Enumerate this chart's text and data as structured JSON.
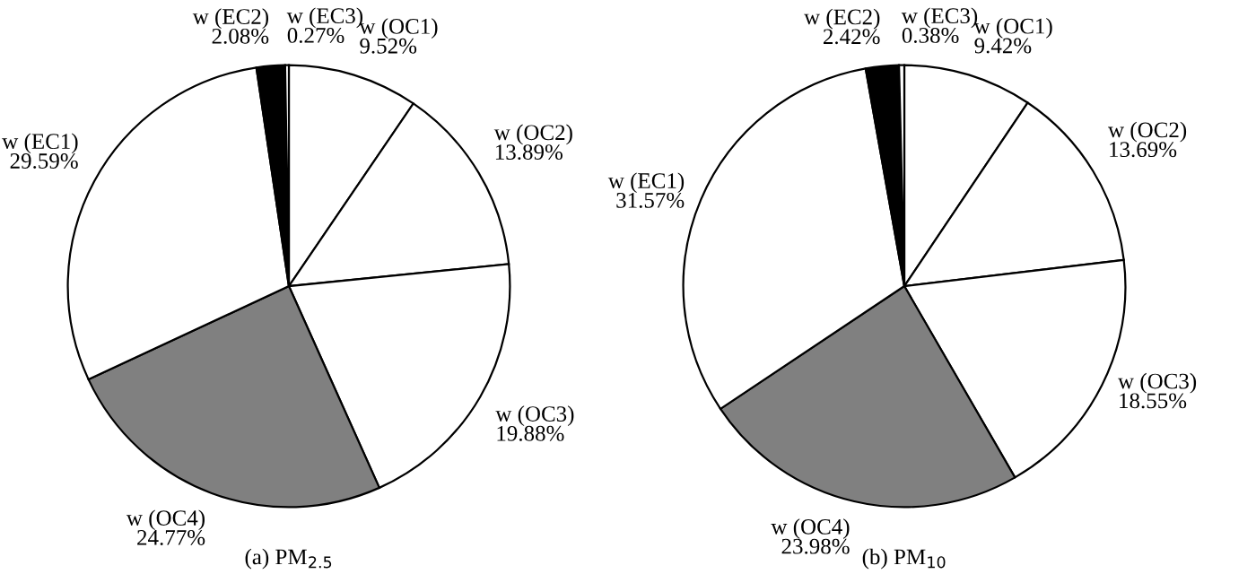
{
  "chart_data": [
    {
      "type": "pie",
      "title": "(a) PM$_{2.5}$",
      "categories": [
        "w (OC1)",
        "w (OC2)",
        "w (OC3)",
        "w (OC4)",
        "w (EC1)",
        "w (EC2)",
        "w (EC3)"
      ],
      "values": [
        9.52,
        13.89,
        19.88,
        24.77,
        29.59,
        2.08,
        0.27
      ],
      "value_labels": [
        "9.52%",
        "13.89%",
        "19.88%",
        "24.77%",
        "29.59%",
        "2.08%",
        "0.27%"
      ],
      "colors": [
        "#ffffff",
        "#ffffff",
        "#ffffff",
        "#808080",
        "#ffffff",
        "#000000",
        "#ffffff"
      ]
    },
    {
      "type": "pie",
      "title": "(b) PM$_{10}$",
      "categories": [
        "w (OC1)",
        "w (OC2)",
        "w (OC3)",
        "w (OC4)",
        "w (EC1)",
        "w (EC2)",
        "w (EC3)"
      ],
      "values": [
        9.42,
        13.69,
        18.55,
        23.98,
        31.57,
        2.42,
        0.38
      ],
      "value_labels": [
        "9.42%",
        "13.69%",
        "18.55%",
        "23.98%",
        "31.57%",
        "2.42%",
        "0.38%"
      ],
      "colors": [
        "#ffffff",
        "#ffffff",
        "#ffffff",
        "#808080",
        "#ffffff",
        "#000000",
        "#ffffff"
      ]
    }
  ]
}
